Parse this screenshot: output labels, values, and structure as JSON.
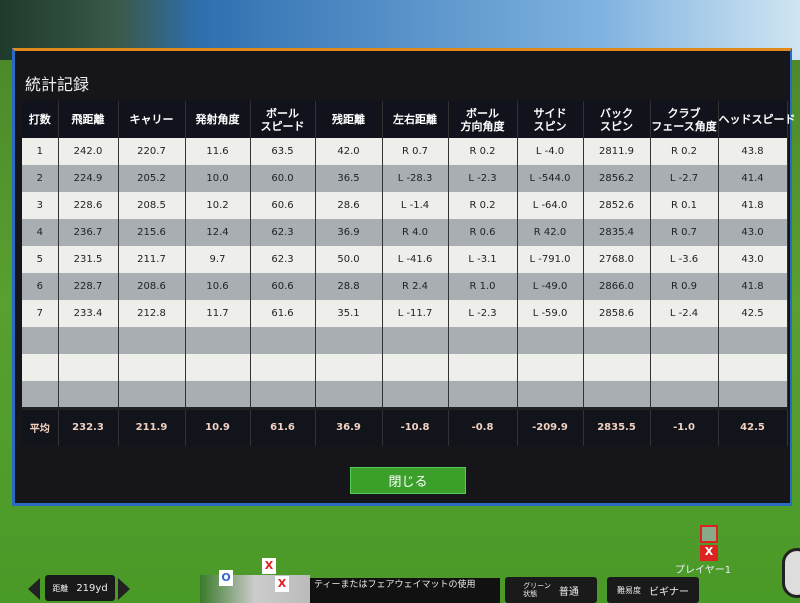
{
  "dialog": {
    "title": "統計記録",
    "close_label": "閉じる"
  },
  "table": {
    "headers": [
      "打数",
      "飛距離",
      "キャリー",
      "発射角度",
      "ボール\nスピード",
      "残距離",
      "左右距離",
      "ボール\n方向角度",
      "サイド\nスピン",
      "バック\nスピン",
      "クラブ\nフェース角度",
      "ヘッドスピード"
    ],
    "rows": [
      [
        "1",
        "242.0",
        "220.7",
        "11.6",
        "63.5",
        "42.0",
        "R 0.7",
        "R 0.2",
        "L -4.0",
        "2811.9",
        "R 0.2",
        "43.8"
      ],
      [
        "2",
        "224.9",
        "205.2",
        "10.0",
        "60.0",
        "36.5",
        "L -28.3",
        "L -2.3",
        "L -544.0",
        "2856.2",
        "L -2.7",
        "41.4"
      ],
      [
        "3",
        "228.6",
        "208.5",
        "10.2",
        "60.6",
        "28.6",
        "L -1.4",
        "R 0.2",
        "L -64.0",
        "2852.6",
        "R 0.1",
        "41.8"
      ],
      [
        "4",
        "236.7",
        "215.6",
        "12.4",
        "62.3",
        "36.9",
        "R 4.0",
        "R 0.6",
        "R 42.0",
        "2835.4",
        "R 0.7",
        "43.0"
      ],
      [
        "5",
        "231.5",
        "211.7",
        "9.7",
        "62.3",
        "50.0",
        "L -41.6",
        "L -3.1",
        "L -791.0",
        "2768.0",
        "L -3.6",
        "43.0"
      ],
      [
        "6",
        "228.7",
        "208.6",
        "10.6",
        "60.6",
        "28.8",
        "R 2.4",
        "R 1.0",
        "L -49.0",
        "2866.0",
        "R 0.9",
        "41.8"
      ],
      [
        "7",
        "233.4",
        "212.8",
        "11.7",
        "61.6",
        "35.1",
        "L -11.7",
        "L -2.3",
        "L -59.0",
        "2858.6",
        "L -2.4",
        "42.5"
      ]
    ],
    "empty_rows": 3,
    "average": [
      "平均",
      "232.3",
      "211.9",
      "10.9",
      "61.6",
      "36.9",
      "-10.8",
      "-0.8",
      "-209.9",
      "2835.5",
      "-1.0",
      "42.5"
    ]
  },
  "bottom": {
    "distance_label": "距離",
    "distance_value": "219yd",
    "tee_text": "ティーまたはフェアウェイマットの使用",
    "green_label": "グリーン\n状態",
    "green_value": "普通",
    "difficulty_label": "難易度",
    "difficulty_value": "ビギナー",
    "player": "プレイヤー1",
    "pin_o": "O",
    "pin_x": "X"
  },
  "colors": {
    "accent_orange": "#e08a20",
    "close_green": "#3aa02a",
    "border_blue": "#2a6ac0"
  }
}
